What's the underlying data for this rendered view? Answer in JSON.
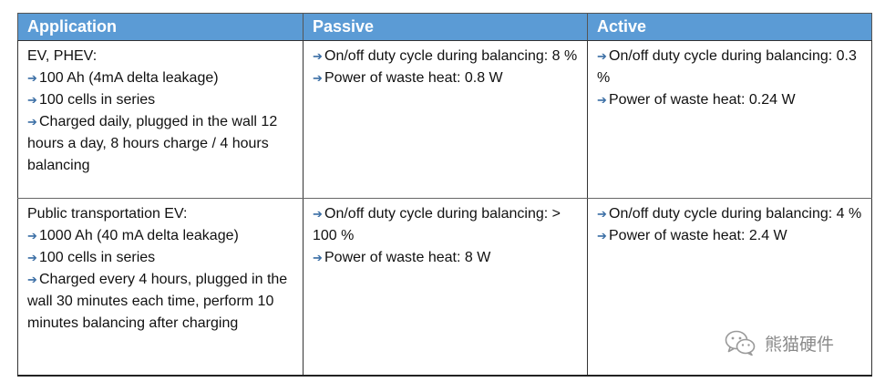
{
  "table": {
    "headers": [
      "Application",
      "Passive",
      "Active"
    ],
    "arrow_glyph": "➔",
    "accent_color": "#5b9bd5",
    "rows": [
      {
        "application": {
          "title": "EV, PHEV:",
          "items": [
            "100 Ah (4mA delta leakage)",
            "100 cells in series",
            "Charged daily, plugged in the wall 12 hours a day, 8 hours charge / 4 hours balancing"
          ]
        },
        "passive": [
          "On/off duty cycle during balancing: 8 %",
          "Power of waste heat: 0.8 W"
        ],
        "active": [
          "On/off duty cycle during balancing: 0.3 %",
          "Power of waste heat: 0.24 W"
        ]
      },
      {
        "application": {
          "title": "Public transportation EV:",
          "items": [
            "1000 Ah (40 mA delta leakage)",
            "100 cells in series",
            "Charged every 4 hours, plugged in the wall 30 minutes each time, perform 10 minutes balancing after charging"
          ]
        },
        "passive": [
          "On/off duty cycle during balancing: > 100 %",
          "Power of waste heat: 8 W"
        ],
        "active": [
          "On/off duty cycle during balancing: 4 %",
          "Power of waste heat: 2.4 W"
        ]
      }
    ]
  },
  "watermark": {
    "text": "熊猫硬件",
    "icon": "wechat-icon"
  }
}
